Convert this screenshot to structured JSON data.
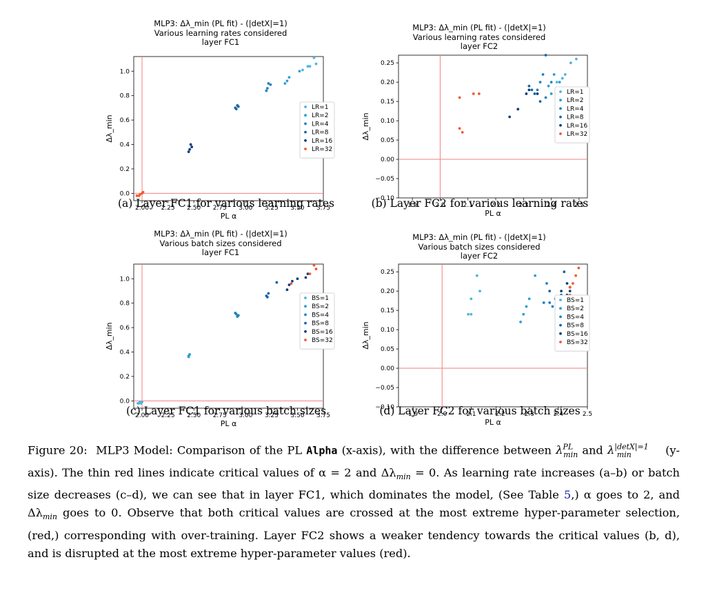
{
  "colors": {
    "red_line": "#f08080",
    "series": [
      "#4fb3e0",
      "#2a9fd6",
      "#1f82c2",
      "#1565a8",
      "#0d3e7a",
      "#f05a32"
    ]
  },
  "chart_data": [
    {
      "type": "scatter",
      "title_lines": [
        "MLP3: Δλ_min (PL fit) - (|detX|=1)",
        "Various learning rates considered",
        "layer FC1"
      ],
      "xlabel": "PL α",
      "ylabel": "Δλ_min",
      "xlim": [
        1.92,
        3.75
      ],
      "ylim": [
        -0.06,
        1.12
      ],
      "xticks": [
        2.0,
        2.25,
        2.5,
        2.75,
        3.0,
        3.25,
        3.5,
        3.75
      ],
      "xtick_labels": [
        "2.00",
        "2.25",
        "2.50",
        "2.75",
        "3.00",
        "3.25",
        "3.50",
        "3.75"
      ],
      "yticks": [
        0.0,
        0.2,
        0.4,
        0.6,
        0.8,
        1.0
      ],
      "ytick_labels": [
        "0.0",
        "0.2",
        "0.4",
        "0.6",
        "0.8",
        "1.0"
      ],
      "critical_x": 2.0,
      "critical_y": 0.0,
      "legend_position": "right",
      "series": [
        {
          "name": "LR=1",
          "points": [
            [
              3.66,
              1.11
            ],
            [
              3.68,
              1.06
            ],
            [
              3.62,
              1.04
            ],
            [
              3.55,
              1.01
            ],
            [
              3.6,
              1.04
            ]
          ]
        },
        {
          "name": "LR=2",
          "points": [
            [
              3.52,
              1.0
            ],
            [
              3.42,
              0.95
            ],
            [
              3.4,
              0.92
            ],
            [
              3.38,
              0.9
            ]
          ]
        },
        {
          "name": "LR=4",
          "points": [
            [
              3.24,
              0.89
            ],
            [
              3.21,
              0.86
            ],
            [
              3.22,
              0.9
            ],
            [
              3.2,
              0.84
            ]
          ]
        },
        {
          "name": "LR=8",
          "points": [
            [
              2.92,
              0.72
            ],
            [
              2.9,
              0.7
            ],
            [
              2.93,
              0.71
            ],
            [
              2.91,
              0.69
            ]
          ]
        },
        {
          "name": "LR=16",
          "points": [
            [
              2.47,
              0.4
            ],
            [
              2.45,
              0.34
            ],
            [
              2.48,
              0.38
            ],
            [
              2.46,
              0.36
            ]
          ]
        },
        {
          "name": "LR=32",
          "points": [
            [
              1.95,
              -0.02
            ],
            [
              1.98,
              -0.01
            ],
            [
              2.0,
              0.0
            ],
            [
              1.97,
              -0.02
            ],
            [
              2.01,
              0.01
            ]
          ]
        }
      ]
    },
    {
      "type": "scatter",
      "title_lines": [
        "MLP3: Δλ_min (PL fit) - (|detX|=1)",
        "Various learning rates considered",
        "layer FC2"
      ],
      "xlabel": "PL α",
      "ylabel": "Δλ_min",
      "xlim": [
        1.85,
        2.53
      ],
      "ylim": [
        -0.1,
        0.27
      ],
      "xticks": [
        1.9,
        2.0,
        2.1,
        2.2,
        2.3,
        2.4,
        2.5
      ],
      "xtick_labels": [
        "1.9",
        "2.0",
        "2.1",
        "2.2",
        "2.3",
        "2.4",
        "2.5"
      ],
      "yticks": [
        -0.1,
        -0.05,
        0.0,
        0.05,
        0.1,
        0.15,
        0.2,
        0.25
      ],
      "ytick_labels": [
        "−0.10",
        "−0.05",
        "0.00",
        "0.05",
        "0.10",
        "0.15",
        "0.20",
        "0.25"
      ],
      "critical_x": 2.0,
      "critical_y": 0.0,
      "legend_position": "right",
      "series": [
        {
          "name": "LR=1",
          "points": [
            [
              2.49,
              0.26
            ],
            [
              2.47,
              0.25
            ],
            [
              2.44,
              0.21
            ],
            [
              2.42,
              0.2
            ],
            [
              2.45,
              0.22
            ]
          ]
        },
        {
          "name": "LR=2",
          "points": [
            [
              2.41,
              0.22
            ],
            [
              2.43,
              0.17
            ],
            [
              2.39,
              0.19
            ],
            [
              2.4,
              0.17
            ],
            [
              2.43,
              0.2
            ]
          ]
        },
        {
          "name": "LR=4",
          "points": [
            [
              2.36,
              0.2
            ],
            [
              2.38,
              0.16
            ],
            [
              2.4,
              0.2
            ],
            [
              2.37,
              0.22
            ],
            [
              2.35,
              0.18
            ]
          ]
        },
        {
          "name": "LR=8",
          "points": [
            [
              2.34,
              0.17
            ],
            [
              2.32,
              0.19
            ],
            [
              2.38,
              0.27
            ],
            [
              2.36,
              0.15
            ],
            [
              2.33,
              0.18
            ]
          ]
        },
        {
          "name": "LR=16",
          "points": [
            [
              2.25,
              0.11
            ],
            [
              2.28,
              0.13
            ],
            [
              2.31,
              0.17
            ],
            [
              2.32,
              0.18
            ],
            [
              2.35,
              0.17
            ]
          ]
        },
        {
          "name": "LR=32",
          "points": [
            [
              2.07,
              0.16
            ],
            [
              2.07,
              0.08
            ],
            [
              2.08,
              0.07
            ],
            [
              2.12,
              0.17
            ],
            [
              2.14,
              0.17
            ]
          ]
        }
      ]
    },
    {
      "type": "scatter",
      "title_lines": [
        "MLP3: Δλ_min (PL fit) - (|detX|=1)",
        "Various batch sizes considered",
        "layer FC1"
      ],
      "xlabel": "PL α",
      "ylabel": "Δλ_min",
      "xlim": [
        1.92,
        3.75
      ],
      "ylim": [
        -0.06,
        1.12
      ],
      "xticks": [
        2.0,
        2.25,
        2.5,
        2.75,
        3.0,
        3.25,
        3.5,
        3.75
      ],
      "xtick_labels": [
        "2.00",
        "2.25",
        "2.50",
        "2.75",
        "3.00",
        "3.25",
        "3.50",
        "3.75"
      ],
      "yticks": [
        0.0,
        0.2,
        0.4,
        0.6,
        0.8,
        1.0
      ],
      "ytick_labels": [
        "0.0",
        "0.2",
        "0.4",
        "0.6",
        "0.8",
        "1.0"
      ],
      "critical_x": 2.0,
      "critical_y": 0.0,
      "legend_position": "right",
      "series": [
        {
          "name": "BS=1",
          "points": [
            [
              1.96,
              -0.02
            ],
            [
              1.98,
              -0.01
            ],
            [
              2.0,
              -0.01
            ],
            [
              1.97,
              -0.02
            ],
            [
              1.99,
              -0.02
            ]
          ]
        },
        {
          "name": "BS=2",
          "points": [
            [
              2.45,
              0.37
            ],
            [
              2.46,
              0.38
            ],
            [
              2.45,
              0.36
            ]
          ]
        },
        {
          "name": "BS=4",
          "points": [
            [
              2.91,
              0.71
            ],
            [
              2.92,
              0.69
            ],
            [
              2.9,
              0.72
            ],
            [
              2.93,
              0.7
            ]
          ]
        },
        {
          "name": "BS=8",
          "points": [
            [
              3.2,
              0.86
            ],
            [
              3.22,
              0.88
            ],
            [
              3.21,
              0.85
            ],
            [
              3.3,
              0.97
            ]
          ]
        },
        {
          "name": "BS=16",
          "points": [
            [
              3.4,
              0.91
            ],
            [
              3.42,
              0.95
            ],
            [
              3.45,
              0.98
            ],
            [
              3.5,
              1.0
            ],
            [
              3.58,
              1.01
            ],
            [
              3.6,
              1.04
            ]
          ]
        },
        {
          "name": "BS=32",
          "points": [
            [
              3.66,
              1.11
            ],
            [
              3.68,
              1.08
            ],
            [
              3.62,
              1.04
            ],
            [
              3.44,
              0.96
            ]
          ]
        }
      ]
    },
    {
      "type": "scatter",
      "title_lines": [
        "MLP3: Δλ_min (PL fit) - (|detX|=1)",
        "Various batch sizes considered",
        "layer FC2"
      ],
      "xlabel": "PL α",
      "ylabel": "Δλ_min",
      "xlim": [
        1.85,
        2.5
      ],
      "ylim": [
        -0.1,
        0.27
      ],
      "xticks": [
        1.9,
        2.0,
        2.1,
        2.2,
        2.3,
        2.4,
        2.5
      ],
      "xtick_labels": [
        "1.9",
        "2.0",
        "2.1",
        "2.2",
        "2.3",
        "2.4",
        "2.5"
      ],
      "yticks": [
        -0.1,
        -0.05,
        0.0,
        0.05,
        0.1,
        0.15,
        0.2,
        0.25
      ],
      "ytick_labels": [
        "−0.10",
        "−0.05",
        "0.00",
        "0.05",
        "0.10",
        "0.15",
        "0.20",
        "0.25"
      ],
      "critical_x": 2.0,
      "critical_y": 0.0,
      "legend_position": "right",
      "series": [
        {
          "name": "BS=1",
          "points": [
            [
              2.1,
              0.18
            ],
            [
              2.12,
              0.24
            ],
            [
              2.13,
              0.2
            ],
            [
              2.1,
              0.14
            ],
            [
              2.09,
              0.14
            ]
          ]
        },
        {
          "name": "BS=2",
          "points": [
            [
              2.27,
              0.12
            ],
            [
              2.28,
              0.14
            ],
            [
              2.29,
              0.16
            ],
            [
              2.3,
              0.18
            ],
            [
              2.32,
              0.24
            ]
          ]
        },
        {
          "name": "BS=4",
          "points": [
            [
              2.36,
              0.22
            ],
            [
              2.37,
              0.17
            ],
            [
              2.38,
              0.16
            ],
            [
              2.35,
              0.17
            ],
            [
              2.4,
              0.18
            ]
          ]
        },
        {
          "name": "BS=8",
          "points": [
            [
              2.37,
              0.2
            ],
            [
              2.39,
              0.18
            ],
            [
              2.41,
              0.19
            ],
            [
              2.42,
              0.17
            ],
            [
              2.42,
              0.25
            ]
          ]
        },
        {
          "name": "BS=16",
          "points": [
            [
              2.41,
              0.2
            ],
            [
              2.43,
              0.19
            ],
            [
              2.44,
              0.21
            ],
            [
              2.43,
              0.22
            ],
            [
              2.44,
              0.2
            ]
          ]
        },
        {
          "name": "BS=32",
          "points": [
            [
              2.44,
              0.21
            ],
            [
              2.45,
              0.22
            ],
            [
              2.47,
              0.26
            ],
            [
              2.46,
              0.24
            ],
            [
              2.44,
              0.19
            ]
          ]
        }
      ]
    }
  ],
  "subcaptions": [
    "(a) Layer FC1 for various learning rates",
    "(b) Layer FC2 for various learning rates",
    "(c) Layer FC1 for various batch sizes",
    "(d) Layer FC2 for various batch sizes"
  ],
  "caption": {
    "label": "Figure 20:",
    "part1": "MLP3 Model: Comparison of the PL",
    "alpha_word": "Alpha",
    "part2": "(x-axis), with the difference between",
    "lambda_pl": "λ",
    "sup_pl": "PL",
    "sub_min": "min",
    "and_word": "and",
    "sup_det": "|detX|=1",
    "part3": "(y-axis). The thin red lines indicate critical values of α = 2 and Δλ",
    "part3b": "= 0. As learning rate increases (a–b) or batch size decreases (c–d), we can see that in layer FC1, which dominates the model, (See Table",
    "table_ref": "5",
    "part4": ",) α goes to 2, and Δλ",
    "part5": "goes to 0. Observe that both critical values are crossed at the most extreme hyper-parameter selection, (red,) corresponding with over-training. Layer FC2 shows a weaker tendency towards the critical values (b, d), and is disrupted at the most extreme hyper-parameter values (red)."
  }
}
